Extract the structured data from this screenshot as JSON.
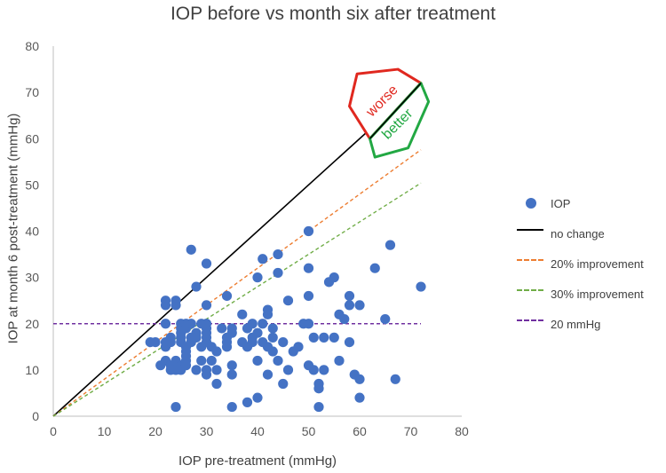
{
  "chart_data": {
    "type": "scatter",
    "title": "IOP before vs month six after treatment",
    "xlabel": "IOP pre-treatment (mmHg)",
    "ylabel": "IOP at month 6 post-treatment (mmHg)",
    "xlim": [
      0,
      80
    ],
    "ylim": [
      0,
      80
    ],
    "xticks": [
      0,
      10,
      20,
      30,
      40,
      50,
      60,
      70,
      80
    ],
    "yticks": [
      0,
      10,
      20,
      30,
      40,
      50,
      60,
      70,
      80
    ],
    "grid": false,
    "legend_position": "right",
    "series": [
      {
        "name": "IOP",
        "kind": "markers",
        "color": "#4472c4",
        "points": [
          [
            19,
            16
          ],
          [
            20,
            16
          ],
          [
            21,
            11
          ],
          [
            22,
            12
          ],
          [
            22,
            16
          ],
          [
            22,
            15
          ],
          [
            22,
            20
          ],
          [
            22,
            25
          ],
          [
            22,
            24
          ],
          [
            23,
            10
          ],
          [
            23,
            11
          ],
          [
            23,
            17
          ],
          [
            23,
            16
          ],
          [
            24,
            2
          ],
          [
            24,
            25
          ],
          [
            24,
            24
          ],
          [
            24,
            10
          ],
          [
            24,
            12
          ],
          [
            25,
            16
          ],
          [
            25,
            17
          ],
          [
            25,
            18
          ],
          [
            25,
            20
          ],
          [
            25,
            19
          ],
          [
            25,
            11
          ],
          [
            25,
            10
          ],
          [
            26,
            12
          ],
          [
            26,
            13
          ],
          [
            26,
            14
          ],
          [
            26,
            15
          ],
          [
            26,
            20
          ],
          [
            26,
            19
          ],
          [
            26,
            11
          ],
          [
            27,
            36
          ],
          [
            27,
            17
          ],
          [
            27,
            16
          ],
          [
            27,
            20
          ],
          [
            28,
            28
          ],
          [
            28,
            18
          ],
          [
            28,
            17
          ],
          [
            28,
            10
          ],
          [
            29,
            20
          ],
          [
            29,
            15
          ],
          [
            29,
            12
          ],
          [
            30,
            33
          ],
          [
            30,
            24
          ],
          [
            30,
            20
          ],
          [
            30,
            19
          ],
          [
            30,
            18
          ],
          [
            30,
            17
          ],
          [
            30,
            16
          ],
          [
            30,
            10
          ],
          [
            30,
            9
          ],
          [
            31,
            15
          ],
          [
            31,
            12
          ],
          [
            32,
            7
          ],
          [
            32,
            10
          ],
          [
            32,
            14
          ],
          [
            33,
            19
          ],
          [
            34,
            26
          ],
          [
            34,
            17
          ],
          [
            34,
            15
          ],
          [
            34,
            16
          ],
          [
            35,
            18
          ],
          [
            35,
            19
          ],
          [
            35,
            11
          ],
          [
            35,
            9
          ],
          [
            35,
            2
          ],
          [
            37,
            22
          ],
          [
            37,
            16
          ],
          [
            38,
            3
          ],
          [
            38,
            19
          ],
          [
            38,
            15
          ],
          [
            39,
            20
          ],
          [
            39,
            17
          ],
          [
            39,
            16
          ],
          [
            40,
            30
          ],
          [
            40,
            18
          ],
          [
            40,
            12
          ],
          [
            40,
            4
          ],
          [
            41,
            34
          ],
          [
            41,
            20
          ],
          [
            41,
            16
          ],
          [
            42,
            23
          ],
          [
            42,
            22
          ],
          [
            42,
            15
          ],
          [
            42,
            9
          ],
          [
            43,
            17
          ],
          [
            43,
            19
          ],
          [
            43,
            14
          ],
          [
            44,
            35
          ],
          [
            44,
            31
          ],
          [
            44,
            12
          ],
          [
            45,
            7
          ],
          [
            45,
            16
          ],
          [
            46,
            25
          ],
          [
            46,
            10
          ],
          [
            47,
            14
          ],
          [
            48,
            15
          ],
          [
            49,
            20
          ],
          [
            50,
            40
          ],
          [
            50,
            32
          ],
          [
            50,
            26
          ],
          [
            50,
            20
          ],
          [
            50,
            11
          ],
          [
            51,
            10
          ],
          [
            51,
            17
          ],
          [
            52,
            7
          ],
          [
            52,
            6
          ],
          [
            52,
            2
          ],
          [
            53,
            17
          ],
          [
            53,
            10
          ],
          [
            54,
            29
          ],
          [
            55,
            30
          ],
          [
            55,
            17
          ],
          [
            56,
            12
          ],
          [
            56,
            22
          ],
          [
            57,
            21
          ],
          [
            58,
            24
          ],
          [
            58,
            26
          ],
          [
            58,
            16
          ],
          [
            59,
            9
          ],
          [
            60,
            24
          ],
          [
            60,
            8
          ],
          [
            60,
            4
          ],
          [
            63,
            32
          ],
          [
            65,
            21
          ],
          [
            66,
            37
          ],
          [
            67,
            8
          ],
          [
            72,
            28
          ]
        ]
      },
      {
        "name": "no change",
        "kind": "line",
        "color": "#000000",
        "dash": "solid",
        "points": [
          [
            0,
            0
          ],
          [
            72,
            72
          ]
        ]
      },
      {
        "name": "20% improvement",
        "kind": "line",
        "color": "#ed7d31",
        "dash": "dashed",
        "points": [
          [
            0,
            0
          ],
          [
            72,
            57.6
          ]
        ]
      },
      {
        "name": "30% improvement",
        "kind": "line",
        "color": "#70ad47",
        "dash": "dashed",
        "points": [
          [
            0,
            0
          ],
          [
            72,
            50.4
          ]
        ]
      },
      {
        "name": "20 mmHg",
        "kind": "line",
        "color": "#7030a0",
        "dash": "dashed",
        "points": [
          [
            0,
            20
          ],
          [
            72,
            20
          ]
        ]
      }
    ],
    "annotations": [
      {
        "text": "worse",
        "color": "#e0281f",
        "position": "above no change line, upper right"
      },
      {
        "text": "better",
        "color": "#22a843",
        "position": "below no change line, upper right"
      }
    ]
  }
}
